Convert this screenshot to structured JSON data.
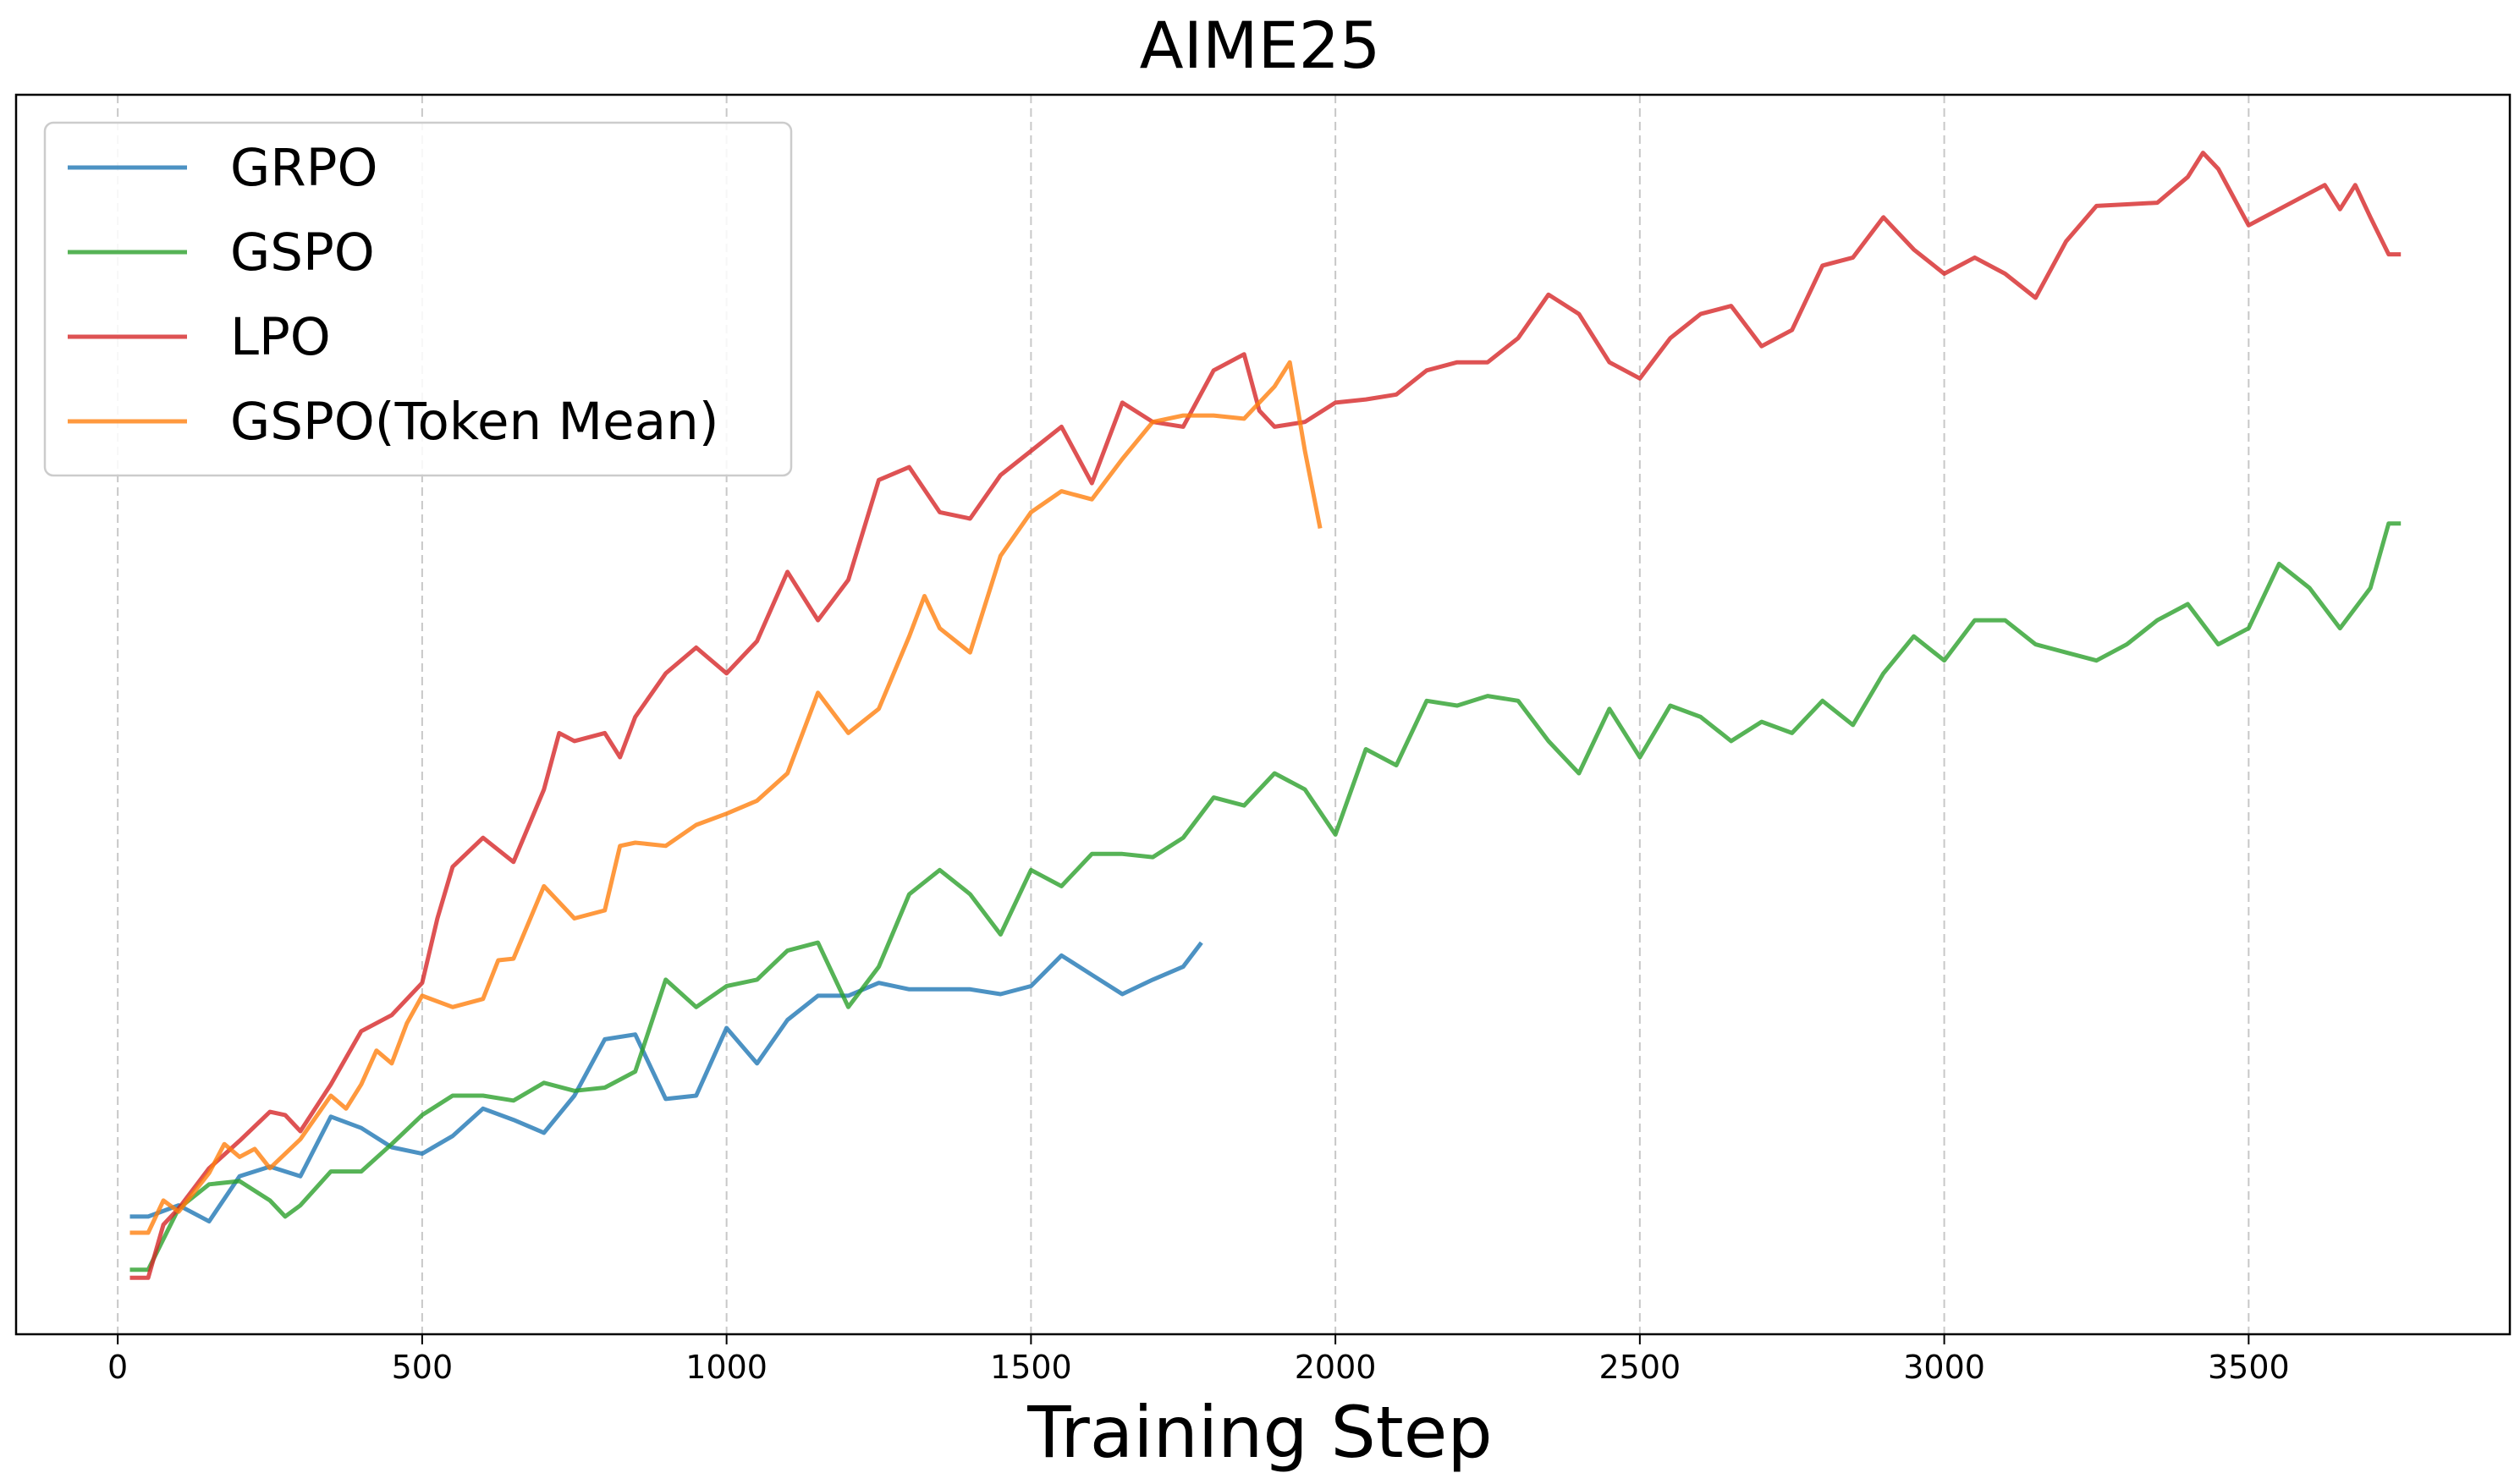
{
  "chart_data": {
    "type": "line",
    "title": "AIME25",
    "xlabel": "Training Step",
    "ylabel": "",
    "xlim": [
      -167,
      3929
    ],
    "ylim": [
      0,
      76.9
    ],
    "y_units_note": "relative score (no y tick labels shown)",
    "xticks": [
      0,
      500,
      1000,
      1500,
      2000,
      2500,
      3000,
      3500
    ],
    "xtick_labels": [
      "0",
      "500",
      "1000",
      "1500",
      "2000",
      "2500",
      "3000",
      "3500"
    ],
    "grid": "vertical dashed",
    "legend_position": "top-left",
    "series": [
      {
        "name": "GRPO",
        "color": "#1f77b4",
        "x": [
          20,
          50,
          100,
          150,
          200,
          250,
          300,
          350,
          400,
          450,
          500,
          550,
          600,
          650,
          700,
          750,
          800,
          850,
          900,
          950,
          1000,
          1050,
          1100,
          1150,
          1200,
          1250,
          1300,
          1350,
          1400,
          1450,
          1500,
          1550,
          1600,
          1650,
          1700,
          1750,
          1780
        ],
        "y": [
          7.3,
          7.3,
          8.0,
          7.0,
          9.8,
          10.4,
          9.8,
          13.5,
          12.8,
          11.6,
          11.2,
          12.3,
          14.0,
          13.3,
          12.5,
          14.8,
          18.3,
          18.6,
          14.6,
          14.8,
          19.0,
          16.8,
          19.5,
          21.0,
          21.0,
          21.8,
          21.4,
          21.4,
          21.4,
          21.1,
          21.6,
          23.5,
          22.3,
          21.1,
          22.0,
          22.8,
          24.3
        ]
      },
      {
        "name": "GSPO",
        "color": "#2ca02c",
        "x": [
          20,
          50,
          100,
          150,
          200,
          250,
          275,
          300,
          350,
          400,
          450,
          500,
          550,
          600,
          650,
          700,
          750,
          800,
          850,
          900,
          950,
          1000,
          1050,
          1100,
          1150,
          1200,
          1250,
          1300,
          1350,
          1400,
          1450,
          1500,
          1550,
          1600,
          1650,
          1700,
          1750,
          1800,
          1850,
          1900,
          1950,
          2000,
          2050,
          2100,
          2150,
          2200,
          2250,
          2300,
          2350,
          2400,
          2450,
          2500,
          2550,
          2600,
          2650,
          2700,
          2750,
          2800,
          2850,
          2900,
          2950,
          3000,
          3050,
          3100,
          3150,
          3200,
          3250,
          3300,
          3350,
          3400,
          3450,
          3500,
          3550,
          3600,
          3650,
          3700,
          3730,
          3750
        ],
        "y": [
          4.0,
          4.0,
          7.8,
          9.3,
          9.5,
          8.3,
          7.3,
          8.0,
          10.1,
          10.1,
          11.8,
          13.6,
          14.8,
          14.8,
          14.5,
          15.6,
          15.1,
          15.3,
          16.3,
          22.0,
          20.3,
          21.6,
          22.0,
          23.8,
          24.3,
          20.3,
          22.8,
          27.3,
          28.8,
          27.3,
          24.8,
          28.8,
          27.8,
          29.8,
          29.8,
          29.6,
          30.8,
          33.3,
          32.8,
          34.8,
          33.8,
          31.0,
          36.3,
          35.3,
          39.3,
          39.0,
          39.6,
          39.3,
          36.8,
          34.8,
          38.8,
          35.8,
          39.0,
          38.3,
          36.8,
          38.0,
          37.3,
          39.3,
          37.8,
          41.0,
          43.3,
          41.8,
          44.3,
          44.3,
          42.8,
          42.3,
          41.8,
          42.8,
          44.3,
          45.3,
          42.8,
          43.8,
          47.8,
          46.3,
          43.8,
          46.3,
          50.3,
          50.3
        ]
      },
      {
        "name": "LPO",
        "color": "#d62728",
        "x": [
          20,
          50,
          75,
          100,
          150,
          200,
          250,
          275,
          300,
          350,
          400,
          450,
          500,
          525,
          550,
          600,
          650,
          700,
          725,
          750,
          800,
          825,
          850,
          900,
          950,
          1000,
          1050,
          1100,
          1150,
          1200,
          1250,
          1300,
          1350,
          1400,
          1450,
          1500,
          1550,
          1600,
          1650,
          1700,
          1750,
          1800,
          1850,
          1875,
          1900,
          1950,
          2000,
          2050,
          2100,
          2150,
          2200,
          2250,
          2300,
          2350,
          2400,
          2450,
          2500,
          2550,
          2600,
          2650,
          2700,
          2750,
          2800,
          2850,
          2900,
          2950,
          3000,
          3050,
          3100,
          3150,
          3200,
          3250,
          3300,
          3350,
          3400,
          3425,
          3450,
          3500,
          3550,
          3600,
          3625,
          3650,
          3675,
          3700,
          3730,
          3750
        ],
        "y": [
          3.5,
          3.5,
          6.8,
          7.8,
          10.3,
          12.0,
          13.8,
          13.6,
          12.6,
          15.5,
          18.8,
          19.8,
          21.8,
          25.8,
          29.0,
          30.8,
          29.3,
          33.8,
          37.3,
          36.8,
          37.3,
          35.8,
          38.3,
          41.0,
          42.6,
          41.0,
          43.0,
          47.3,
          44.3,
          46.8,
          53.0,
          53.8,
          51.0,
          50.6,
          53.3,
          54.8,
          56.3,
          52.8,
          57.8,
          56.6,
          56.3,
          59.8,
          60.8,
          57.3,
          56.3,
          56.6,
          57.8,
          58.0,
          58.3,
          59.8,
          60.3,
          60.3,
          61.8,
          64.5,
          63.3,
          60.3,
          59.3,
          61.8,
          63.3,
          63.8,
          61.3,
          62.3,
          66.3,
          66.8,
          69.3,
          67.3,
          65.8,
          66.8,
          65.8,
          64.3,
          67.8,
          70.0,
          70.1,
          70.2,
          71.8,
          73.3,
          72.3,
          68.8,
          69.8,
          70.8,
          71.3,
          69.8,
          71.3,
          69.3,
          67.0,
          67.0
        ]
      },
      {
        "name": "GSPO(Token Mean)",
        "color": "#ff7f0e",
        "x": [
          20,
          50,
          75,
          100,
          150,
          175,
          200,
          225,
          250,
          300,
          350,
          375,
          400,
          425,
          450,
          475,
          500,
          550,
          600,
          625,
          650,
          700,
          750,
          800,
          825,
          850,
          900,
          950,
          1000,
          1050,
          1100,
          1150,
          1200,
          1250,
          1300,
          1325,
          1350,
          1400,
          1450,
          1500,
          1550,
          1600,
          1650,
          1700,
          1750,
          1800,
          1850,
          1900,
          1925,
          1950,
          1975
        ],
        "y": [
          6.3,
          6.3,
          8.3,
          7.6,
          10.0,
          11.8,
          11.0,
          11.5,
          10.3,
          12.1,
          14.8,
          14.0,
          15.5,
          17.6,
          16.8,
          19.3,
          21.0,
          20.3,
          20.8,
          23.2,
          23.3,
          27.8,
          25.8,
          26.3,
          30.3,
          30.5,
          30.3,
          31.6,
          32.3,
          33.1,
          34.8,
          39.8,
          37.3,
          38.8,
          43.3,
          45.8,
          43.8,
          42.3,
          48.3,
          51.0,
          52.3,
          51.8,
          54.3,
          56.6,
          57.0,
          57.0,
          56.8,
          58.8,
          60.3,
          54.8,
          50.0
        ]
      }
    ]
  }
}
